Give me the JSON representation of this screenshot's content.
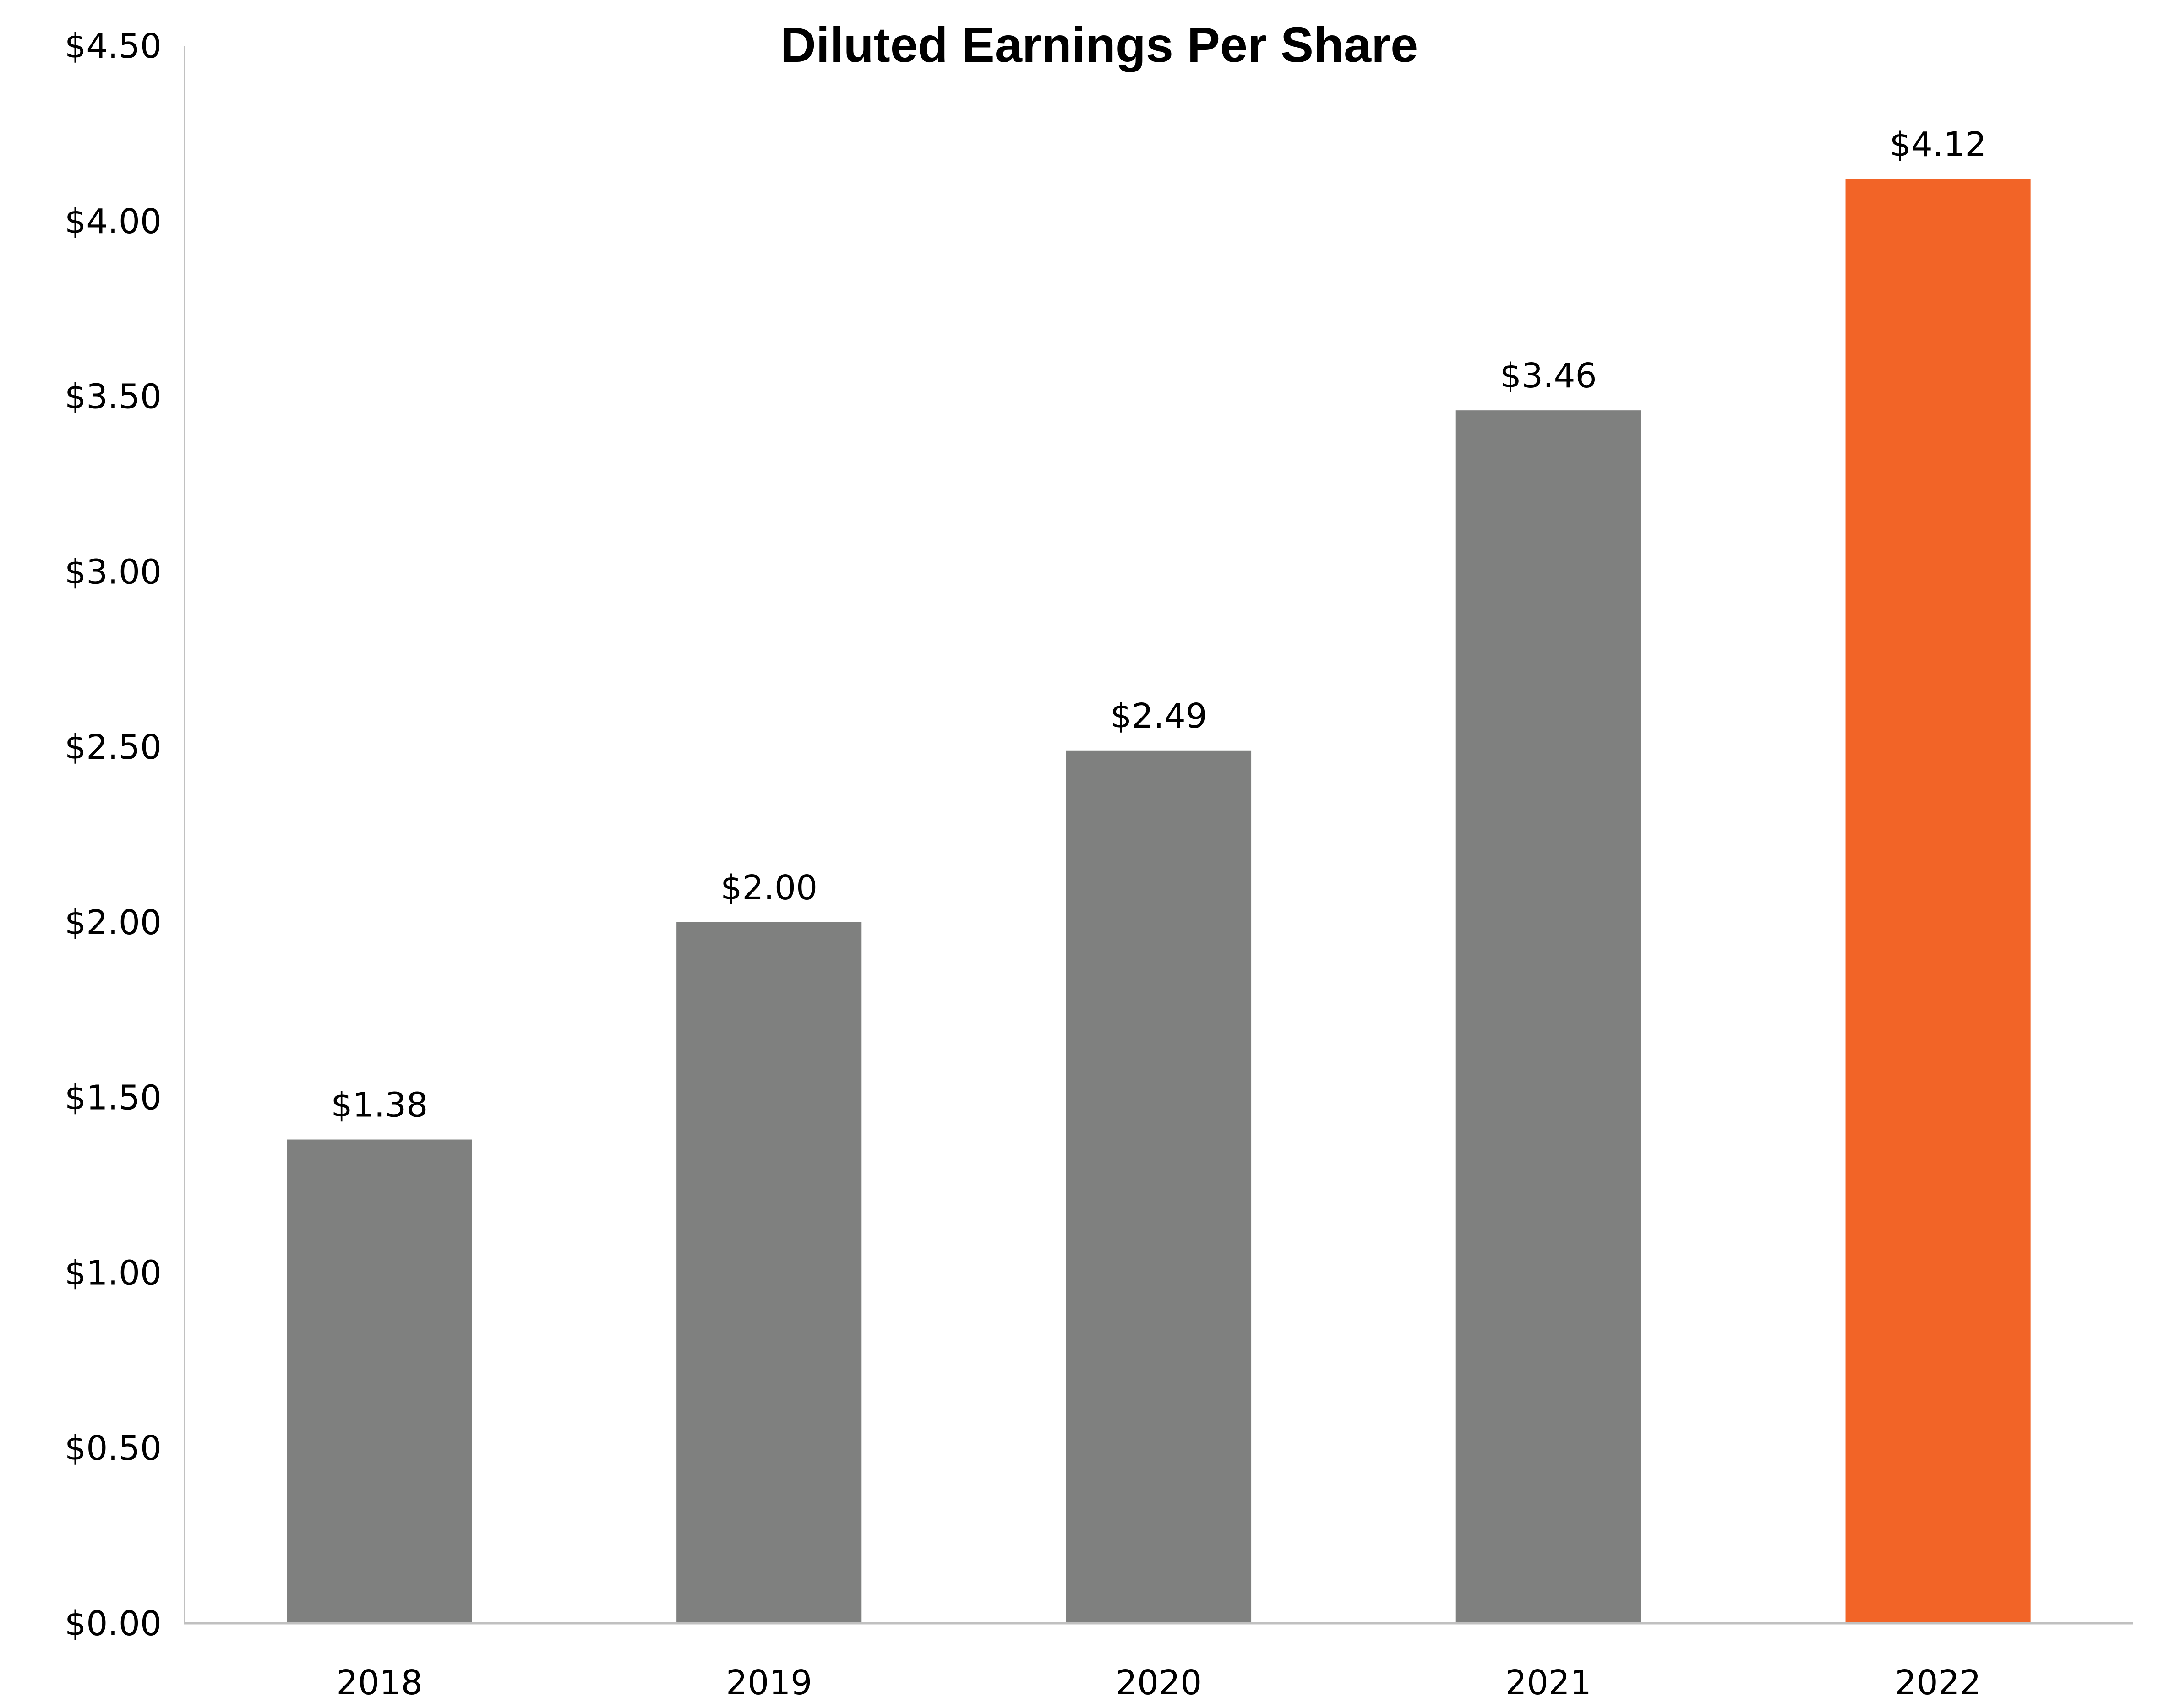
{
  "chart_data": {
    "type": "bar",
    "title": "Diluted Earnings Per Share",
    "xlabel": "",
    "ylabel": "",
    "categories": [
      "2018",
      "2019",
      "2020",
      "2021",
      "2022"
    ],
    "values": [
      1.38,
      2.0,
      2.49,
      3.46,
      4.12
    ],
    "data_labels": [
      "$1.38",
      "$2.00",
      "$2.49",
      "$3.46",
      "$4.12"
    ],
    "ylim": [
      0,
      4.5
    ],
    "yticks": [
      0,
      0.5,
      1.0,
      1.5,
      2.0,
      2.5,
      3.0,
      3.5,
      4.0,
      4.5
    ],
    "ytick_labels": [
      "$0.00",
      "$0.50",
      "$1.00",
      "$1.50",
      "$2.00",
      "$2.50",
      "$3.00",
      "$3.50",
      "$4.00",
      "$4.50"
    ],
    "grid": false,
    "legend": "none",
    "colors": {
      "default": "#7f807f",
      "highlight": "#f26427",
      "axis": "#c0c0c0"
    },
    "highlight_index": 4
  }
}
